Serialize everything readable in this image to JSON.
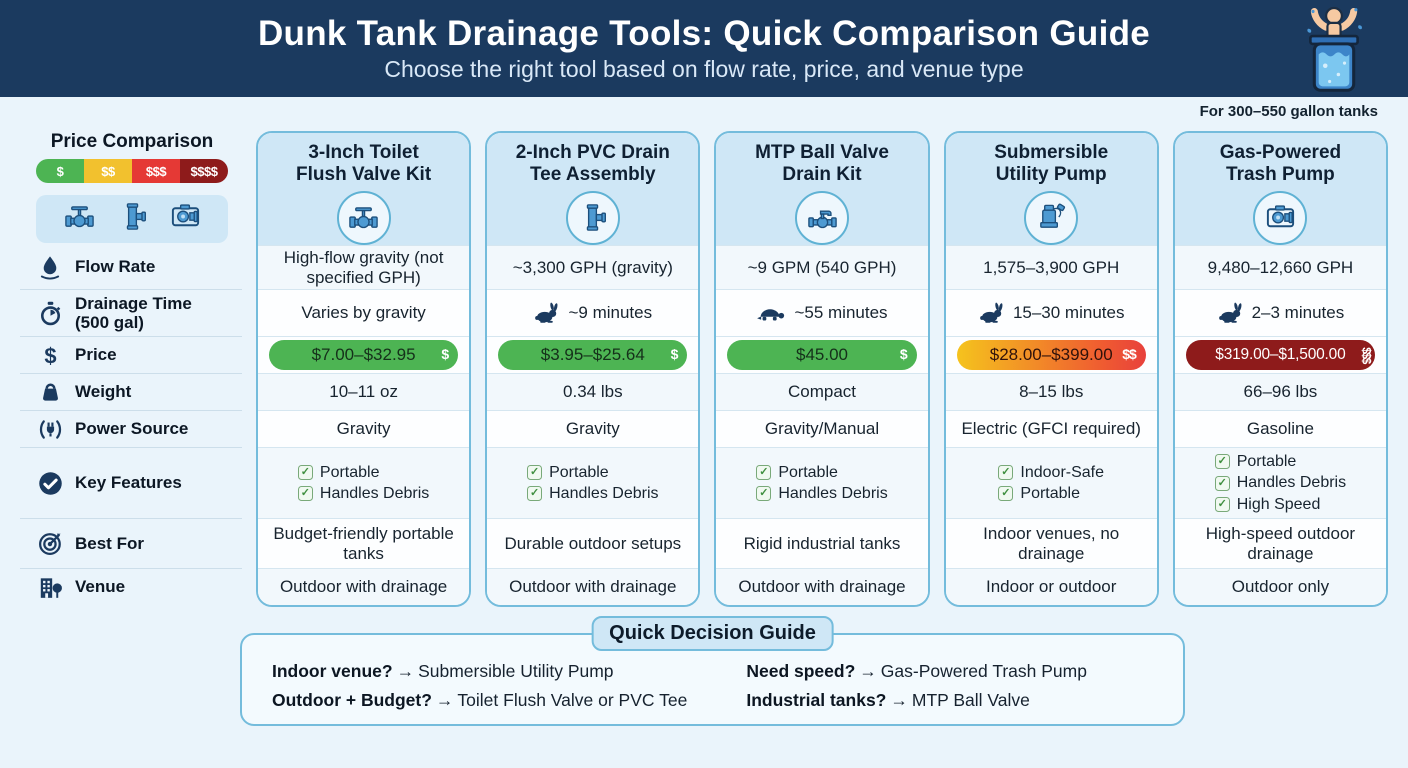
{
  "header": {
    "title": "Dunk Tank Drainage Tools: Quick Comparison Guide",
    "subtitle": "Choose the right tool based on flow rate, price, and venue type",
    "tank_note": "For 300–550 gallon tanks"
  },
  "colors": {
    "header_bg": "#1b3a5f",
    "card_border": "#74bcdc",
    "card_header_bg": "#cfe7f6",
    "price_green": "#4db453",
    "price_yellow": "#f5c31d",
    "price_red": "#e8413c",
    "price_darkred": "#8e1b1b",
    "icon_navy": "#1b3a5f"
  },
  "sidebar": {
    "price_legend": {
      "title": "Price Comparison",
      "tiers": [
        {
          "label": "$",
          "color": "#4db453"
        },
        {
          "label": "$$",
          "color": "#f2c12e"
        },
        {
          "label": "$$$",
          "color": "#e53935"
        },
        {
          "label": "$$$$",
          "color": "#8e1b1b"
        }
      ]
    },
    "tool_icons": [
      "flush-valve-icon",
      "pvc-tee-icon",
      "trash-pump-icon"
    ],
    "rows": [
      {
        "id": "flow",
        "label": "Flow Rate",
        "icon": "water-drop-icon"
      },
      {
        "id": "time",
        "label": "Drainage Time (500 gal)",
        "icon": "stopwatch-icon"
      },
      {
        "id": "price",
        "label": "Price",
        "icon": "dollar-icon"
      },
      {
        "id": "weight",
        "label": "Weight",
        "icon": "weight-icon"
      },
      {
        "id": "power",
        "label": "Power Source",
        "icon": "plug-icon"
      },
      {
        "id": "features",
        "label": "Key Features",
        "icon": "check-circle-icon"
      },
      {
        "id": "best",
        "label": "Best For",
        "icon": "target-icon"
      },
      {
        "id": "venue",
        "label": "Venue",
        "icon": "building-icon"
      }
    ]
  },
  "products": [
    {
      "name_lines": [
        "3-Inch Toilet",
        "Flush Valve Kit"
      ],
      "icon": "flush-valve-icon",
      "flow_rate": "High-flow gravity (not specified GPH)",
      "drainage_time": "Varies by gravity",
      "speed_icon": null,
      "price": "$7.00–$32.95",
      "price_tier": "$",
      "price_style": "green",
      "weight": "10–11 oz",
      "power_source": "Gravity",
      "features": [
        "Portable",
        "Handles Debris"
      ],
      "best_for": "Budget-friendly portable tanks",
      "venue": "Outdoor with drainage"
    },
    {
      "name_lines": [
        "2-Inch PVC Drain",
        "Tee Assembly"
      ],
      "icon": "pvc-tee-icon",
      "flow_rate": "~3,300 GPH (gravity)",
      "drainage_time": "~9 minutes",
      "speed_icon": "rabbit-icon",
      "price": "$3.95–$25.64",
      "price_tier": "$",
      "price_style": "green",
      "weight": "0.34 lbs",
      "power_source": "Gravity",
      "features": [
        "Portable",
        "Handles Debris"
      ],
      "best_for": "Durable outdoor setups",
      "venue": "Outdoor with drainage"
    },
    {
      "name_lines": [
        "MTP Ball Valve",
        "Drain Kit"
      ],
      "icon": "ball-valve-icon",
      "flow_rate": "~9 GPM (540 GPH)",
      "drainage_time": "~55 minutes",
      "speed_icon": "turtle-icon",
      "price": "$45.00",
      "price_tier": "$",
      "price_style": "green",
      "weight": "Compact",
      "power_source": "Gravity/Manual",
      "features": [
        "Portable",
        "Handles Debris"
      ],
      "best_for": "Rigid industrial tanks",
      "venue": "Outdoor with drainage"
    },
    {
      "name_lines": [
        "Submersible",
        "Utility Pump"
      ],
      "icon": "submersible-pump-icon",
      "flow_rate": "1,575–3,900 GPH",
      "drainage_time": "15–30 minutes",
      "speed_icon": "rabbit-icon",
      "price": "$28.00–$399.00",
      "price_tier": "$$",
      "price_style": "gradient",
      "weight": "8–15 lbs",
      "power_source": "Electric (GFCI required)",
      "features": [
        "Indoor-Safe",
        "Portable"
      ],
      "best_for": "Indoor venues, no drainage",
      "venue": "Indoor or outdoor"
    },
    {
      "name_lines": [
        "Gas-Powered",
        "Trash Pump"
      ],
      "icon": "trash-pump-icon",
      "flow_rate": "9,480–12,660 GPH",
      "drainage_time": "2–3 minutes",
      "speed_icon": "rabbit-icon",
      "price": "$319.00–$1,500.00",
      "price_tier": "$$$",
      "price_style": "darkred",
      "weight": "66–96 lbs",
      "power_source": "Gasoline",
      "features": [
        "Portable",
        "Handles Debris",
        "High Speed"
      ],
      "best_for": "High-speed outdoor drainage",
      "venue": "Outdoor only"
    }
  ],
  "decision_guide": {
    "title": "Quick Decision Guide",
    "arrow": "→",
    "items": [
      {
        "question": "Indoor venue?",
        "answer": "Submersible Utility Pump"
      },
      {
        "question": "Outdoor + Budget?",
        "answer": "Toilet Flush Valve or PVC Tee"
      },
      {
        "question": "Need speed?",
        "answer": "Gas-Powered Trash Pump"
      },
      {
        "question": "Industrial tanks?",
        "answer": "MTP Ball Valve"
      }
    ]
  },
  "chart_data": {
    "type": "table",
    "title": "Dunk Tank Drainage Tools: Quick Comparison Guide",
    "columns": [
      "3-Inch Toilet Flush Valve Kit",
      "2-Inch PVC Drain Tee Assembly",
      "MTP Ball Valve Drain Kit",
      "Submersible Utility Pump",
      "Gas-Powered Trash Pump"
    ],
    "row_headers": [
      "Flow Rate",
      "Drainage Time (500 gal)",
      "Price",
      "Weight",
      "Power Source",
      "Key Features",
      "Best For",
      "Venue"
    ],
    "rows": [
      [
        "High-flow gravity (not specified GPH)",
        "~3,300 GPH (gravity)",
        "~9 GPM (540 GPH)",
        "1,575–3,900 GPH",
        "9,480–12,660 GPH"
      ],
      [
        "Varies by gravity",
        "~9 minutes",
        "~55 minutes",
        "15–30 minutes",
        "2–3 minutes"
      ],
      [
        "$7.00–$32.95",
        "$3.95–$25.64",
        "$45.00",
        "$28.00–$399.00",
        "$319.00–$1,500.00"
      ],
      [
        "10–11 oz",
        "0.34 lbs",
        "Compact",
        "8–15 lbs",
        "66–96 lbs"
      ],
      [
        "Gravity",
        "Gravity",
        "Gravity/Manual",
        "Electric (GFCI required)",
        "Gasoline"
      ],
      [
        "Portable; Handles Debris",
        "Portable; Handles Debris",
        "Portable; Handles Debris",
        "Indoor-Safe; Portable",
        "Portable; Handles Debris; High Speed"
      ],
      [
        "Budget-friendly portable tanks",
        "Durable outdoor setups",
        "Rigid industrial tanks",
        "Indoor venues, no drainage",
        "High-speed outdoor drainage"
      ],
      [
        "Outdoor with drainage",
        "Outdoor with drainage",
        "Outdoor with drainage",
        "Indoor or outdoor",
        "Outdoor only"
      ]
    ]
  }
}
